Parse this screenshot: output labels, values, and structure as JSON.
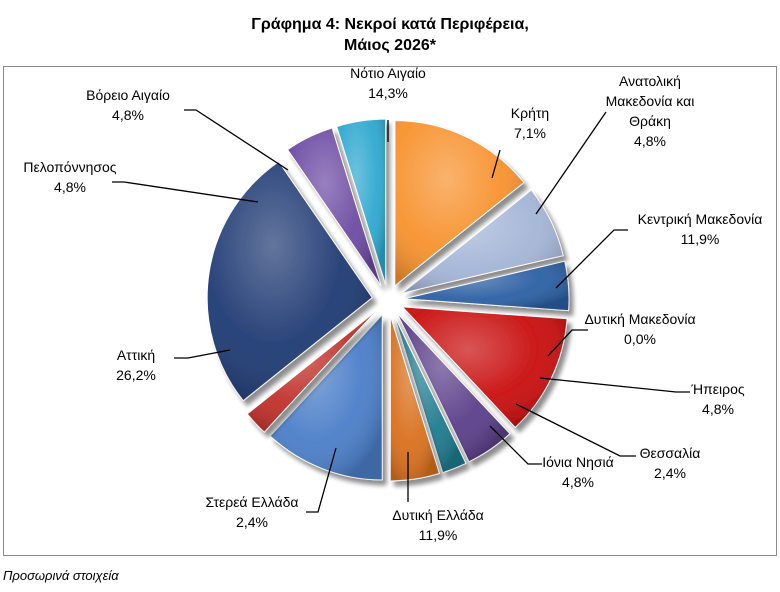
{
  "title_line1": "Γράφημα 4: Νεκροί κατά Περιφέρεια,",
  "title_line2": "Μάιος 2026*",
  "footnote": "Προσωρινά στοιχεία",
  "chart_data": {
    "type": "pie",
    "title": "Γράφημα 4: Νεκροί κατά Περιφέρεια, Μάιος 2026*",
    "unit": "%",
    "slices": [
      {
        "label": "Νότιο Αιγαίο",
        "value": 14.3,
        "value_label": "14,3%",
        "color": "#f7922e"
      },
      {
        "label": "Κρήτη",
        "value": 7.1,
        "value_label": "7,1%",
        "color": "#a4b5d6"
      },
      {
        "label": "Ανατολική Μακεδονία και Θράκη",
        "value": 4.8,
        "value_label": "4,8%",
        "color": "#2b5fa3"
      },
      {
        "label": "Κεντρική Μακεδονία",
        "value": 11.9,
        "value_label": "11,9%",
        "color": "#c90d0d"
      },
      {
        "label": "Δυτική Μακεδονία",
        "value": 0.0,
        "value_label": "0,0%",
        "color": "#8aa33a"
      },
      {
        "label": "Ήπειρος",
        "value": 4.8,
        "value_label": "4,8%",
        "color": "#5b3f8a"
      },
      {
        "label": "Θεσσαλία",
        "value": 2.4,
        "value_label": "2,4%",
        "color": "#1f7b8f"
      },
      {
        "label": "Ιόνια Νησιά",
        "value": 4.8,
        "value_label": "4,8%",
        "color": "#d9701e"
      },
      {
        "label": "Δυτική Ελλάδα",
        "value": 11.9,
        "value_label": "11,9%",
        "color": "#4a7ec8"
      },
      {
        "label": "Στερεά Ελλάδα",
        "value": 2.4,
        "value_label": "2,4%",
        "color": "#c0302a"
      },
      {
        "label": "Αττική",
        "value": 26.2,
        "value_label": "26,2%",
        "color": "#1f3a73"
      },
      {
        "label": "Πελοπόννησος",
        "value": 4.8,
        "value_label": "4,8%",
        "color": "#6c4aa3"
      },
      {
        "label": "Βόρειο Αιγαίο",
        "value": 4.8,
        "value_label": "4,8%",
        "color": "#2fa8d0"
      }
    ]
  }
}
